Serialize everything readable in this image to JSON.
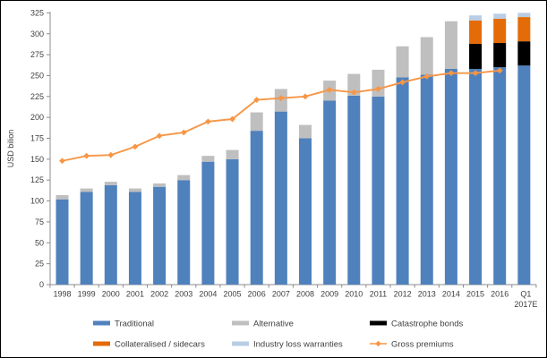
{
  "chart_data": {
    "type": "bar",
    "subtype": "stacked-bar-with-line",
    "title": "",
    "ylabel": "USD bilion",
    "xlabel": "",
    "ylim": [
      0,
      325
    ],
    "ytick_step": 25,
    "ytick_labels": [
      "0",
      "25",
      "50",
      "75",
      "100",
      "125",
      "150",
      "175",
      "200",
      "225",
      "250",
      "275",
      "300",
      "325"
    ],
    "grid": false,
    "legend_position": "bottom",
    "categories": [
      "1998",
      "1999",
      "2000",
      "2001",
      "2002",
      "2003",
      "2004",
      "2005",
      "2006",
      "2007",
      "2008",
      "2009",
      "2010",
      "2011",
      "2012",
      "2013",
      "2014",
      "2015",
      "2016",
      "Q1 2017E"
    ],
    "last_category_lines": [
      "Q1",
      "2017E"
    ],
    "series": [
      {
        "name": "Traditional",
        "type": "bar",
        "color": "#4F81BD",
        "values": [
          102,
          111,
          119,
          111,
          117,
          125,
          147,
          150,
          184,
          207,
          175,
          220,
          226,
          225,
          248,
          251,
          258,
          258,
          260,
          262
        ]
      },
      {
        "name": "Alternative",
        "type": "bar",
        "color": "#BFBFBF",
        "values": [
          5,
          4,
          4,
          4,
          4,
          6,
          7,
          11,
          22,
          27,
          16,
          24,
          26,
          32,
          37,
          45,
          57,
          0,
          0,
          0
        ]
      },
      {
        "name": "Catastrophe bonds",
        "type": "bar",
        "color": "#000000",
        "values": [
          0,
          0,
          0,
          0,
          0,
          0,
          0,
          0,
          0,
          0,
          0,
          0,
          0,
          0,
          0,
          0,
          0,
          30,
          29,
          29
        ]
      },
      {
        "name": "Collateralised / sidecars",
        "type": "bar",
        "color": "#E36C09",
        "values": [
          0,
          0,
          0,
          0,
          0,
          0,
          0,
          0,
          0,
          0,
          0,
          0,
          0,
          0,
          0,
          0,
          0,
          28,
          29,
          29
        ]
      },
      {
        "name": "Industry loss warranties",
        "type": "bar",
        "color": "#B9CDE5",
        "values": [
          0,
          0,
          0,
          0,
          0,
          0,
          0,
          0,
          0,
          0,
          0,
          0,
          0,
          0,
          0,
          0,
          0,
          6,
          6,
          5
        ]
      },
      {
        "name": "Gross premiums",
        "type": "line",
        "color": "#F79646",
        "marker": "diamond",
        "values": [
          148,
          154,
          155,
          165,
          178,
          182,
          195,
          198,
          221,
          223,
          225,
          233,
          230,
          234,
          242,
          249,
          253,
          253,
          256,
          null
        ]
      }
    ],
    "legend": [
      {
        "label": "Traditional",
        "series": "Traditional",
        "swatch": "bar"
      },
      {
        "label": "Alternative",
        "series": "Alternative",
        "swatch": "bar"
      },
      {
        "label": "Catastrophe bonds",
        "series": "Catastrophe bonds",
        "swatch": "bar"
      },
      {
        "label": "Collateralised / sidecars",
        "series": "Collateralised / sidecars",
        "swatch": "bar"
      },
      {
        "label": "Industry loss warranties",
        "series": "Industry loss warranties",
        "swatch": "bar"
      },
      {
        "label": "Gross premiums",
        "series": "Gross premiums",
        "swatch": "line"
      }
    ],
    "axis_color": "#8c8c8c",
    "tick_label_color": "#3f3f3f"
  }
}
